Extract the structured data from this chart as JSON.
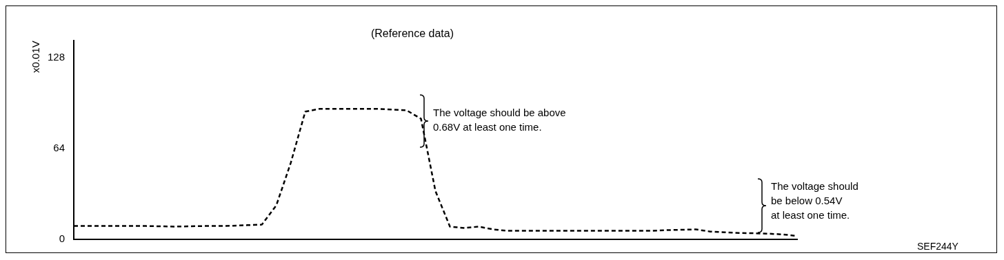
{
  "chart_data": {
    "type": "line",
    "title": "(Reference data)",
    "ylabel": "x0.01V",
    "annotations": [
      "The voltage should be above\n0.68V at least one time.",
      "The voltage should\nbe below 0.54V\nat least one time.",
      "SEF244Y"
    ],
    "categories": [
      null,
      null,
      null,
      null,
      null,
      null,
      null,
      null,
      null,
      null,
      null,
      null,
      null,
      null,
      null,
      null,
      null,
      null,
      null,
      null,
      null,
      null,
      null,
      null,
      null,
      null,
      null,
      null,
      null,
      null,
      null,
      null,
      null,
      null,
      null,
      null,
      null,
      null,
      null,
      null,
      null,
      null,
      null,
      null,
      null,
      null,
      null,
      null,
      null,
      null,
      null
    ],
    "values": [
      9.4,
      9.4,
      9.4,
      9.4,
      9.4,
      9.4,
      9.2,
      9,
      9.2,
      9.4,
      9.4,
      9.6,
      10,
      10.4,
      24,
      54,
      90,
      92,
      92,
      92,
      92,
      92,
      91.5,
      91,
      85,
      34,
      9,
      8,
      9,
      7,
      6,
      6,
      6,
      6,
      6,
      6,
      6,
      6,
      6,
      6,
      6,
      6.5,
      6.8,
      7,
      5.5,
      5,
      4.5,
      4.3,
      4,
      3.5,
      2.4
    ],
    "color": "#000000",
    "ylim": [
      0,
      140
    ],
    "yticks": [
      0,
      64,
      128
    ],
    "grid": false,
    "legend": false,
    "tick_labels": "y",
    "line_style": "dashed",
    "marker": "none"
  }
}
